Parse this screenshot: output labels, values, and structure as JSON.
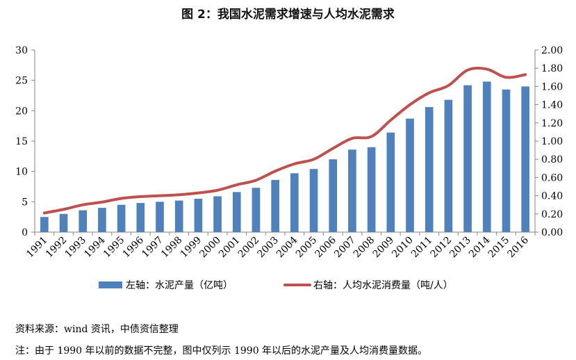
{
  "title": "图 2：我国水泥需求增速与人均水泥需求",
  "source": "资料来源：wind 资讯，中债资信整理",
  "note": "注：由于 1990 年以前的数据不完整，图中仅列示 1990 年以后的水泥产量及人均消费量数据。",
  "chart_data": {
    "type": "bar",
    "title": "图 2：我国水泥需求增速与人均水泥需求",
    "categories": [
      "1991",
      "1992",
      "1993",
      "1994",
      "1995",
      "1996",
      "1997",
      "1998",
      "1999",
      "2000",
      "2001",
      "2002",
      "2003",
      "2004",
      "2005",
      "2006",
      "2007",
      "2008",
      "2009",
      "2010",
      "2011",
      "2012",
      "2013",
      "2014",
      "2015",
      "2016"
    ],
    "series": [
      {
        "name": "左轴：水泥产量（亿吨）",
        "type": "bar",
        "axis": "left",
        "color": "#4f81bd",
        "values": [
          2.5,
          3.0,
          3.6,
          4.0,
          4.5,
          4.8,
          5.0,
          5.2,
          5.5,
          5.9,
          6.6,
          7.3,
          8.6,
          9.7,
          10.4,
          12.0,
          13.6,
          14.0,
          16.4,
          18.7,
          20.6,
          21.8,
          24.2,
          24.8,
          23.5,
          24.0
        ]
      },
      {
        "name": "右轴：人均水泥消费量（吨/人）",
        "type": "line",
        "axis": "right",
        "color": "#c0504d",
        "values": [
          0.21,
          0.25,
          0.3,
          0.33,
          0.37,
          0.39,
          0.4,
          0.41,
          0.43,
          0.46,
          0.52,
          0.57,
          0.67,
          0.75,
          0.8,
          0.92,
          1.03,
          1.05,
          1.23,
          1.4,
          1.53,
          1.61,
          1.78,
          1.79,
          1.7,
          1.73
        ]
      }
    ],
    "y_left": {
      "ylim": [
        0,
        30
      ],
      "ticks": [
        "0",
        "5",
        "10",
        "15",
        "20",
        "25",
        "30"
      ]
    },
    "y_right": {
      "ylim": [
        0,
        2.0
      ],
      "ticks": [
        "0.00",
        "0.20",
        "0.40",
        "0.60",
        "0.80",
        "1.00",
        "1.20",
        "1.40",
        "1.60",
        "1.80",
        "2.00"
      ]
    },
    "grid": false,
    "legend_position": "bottom"
  }
}
